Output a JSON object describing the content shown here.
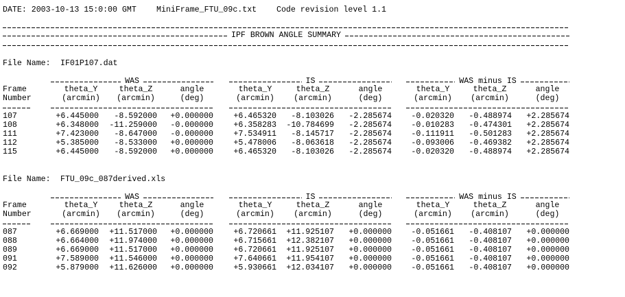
{
  "header": {
    "date": "DATE: 2003-10-13 15:0:00 GMT",
    "file": "MiniFrame_FTU_09c.txt",
    "revision": "Code revision level 1.1"
  },
  "title": "IPF BROWN ANGLE SUMMARY",
  "sections": [
    {
      "file_label": "File Name:",
      "file_name": "IF01P107.dat",
      "groups": [
        "WAS",
        "IS",
        "WAS minus IS"
      ],
      "frame_header": [
        "Frame",
        "Number"
      ],
      "columns": [
        [
          "theta_Y",
          "(arcmin)"
        ],
        [
          "theta_Z",
          "(arcmin)"
        ],
        [
          "angle",
          "(deg)"
        ],
        [
          "theta_Y",
          "(arcmin)"
        ],
        [
          "theta_Z",
          "(arcmin)"
        ],
        [
          "angle",
          "(deg)"
        ],
        [
          "theta_Y",
          "(arcmin)"
        ],
        [
          "theta_Z",
          "(arcmin)"
        ],
        [
          "angle",
          "(deg)"
        ]
      ],
      "rows": [
        [
          "107",
          "+6.445000",
          "-8.592000",
          "+0.000000",
          "+6.465320",
          "-8.103026",
          "-2.285674",
          "-0.020320",
          "-0.488974",
          "+2.285674"
        ],
        [
          "108",
          "+6.348000",
          "-11.259000",
          "-0.000000",
          "+6.358283",
          "-10.784699",
          "-2.285674",
          "-0.010283",
          "-0.474301",
          "+2.285674"
        ],
        [
          "111",
          "+7.423000",
          "-8.647000",
          "-0.000000",
          "+7.534911",
          "-8.145717",
          "-2.285674",
          "-0.111911",
          "-0.501283",
          "+2.285674"
        ],
        [
          "112",
          "+5.385000",
          "-8.533000",
          "+0.000000",
          "+5.478006",
          "-8.063618",
          "-2.285674",
          "-0.093006",
          "-0.469382",
          "+2.285674"
        ],
        [
          "115",
          "+6.445000",
          "-8.592000",
          "+0.000000",
          "+6.465320",
          "-8.103026",
          "-2.285674",
          "-0.020320",
          "-0.488974",
          "+2.285674"
        ]
      ]
    },
    {
      "file_label": "File Name:",
      "file_name": "FTU_09c_087derived.xls",
      "groups": [
        "WAS",
        "IS",
        "WAS minus IS"
      ],
      "frame_header": [
        "Frame",
        "Number"
      ],
      "columns": [
        [
          "theta_Y",
          "(arcmin)"
        ],
        [
          "theta_Z",
          "(arcmin)"
        ],
        [
          "angle",
          "(deg)"
        ],
        [
          "theta_Y",
          "(arcmin)"
        ],
        [
          "theta_Z",
          "(arcmin)"
        ],
        [
          "angle",
          "(deg)"
        ],
        [
          "theta_Y",
          "(arcmin)"
        ],
        [
          "theta_Z",
          "(arcmin)"
        ],
        [
          "angle",
          "(deg)"
        ]
      ],
      "rows": [
        [
          "087",
          "+6.669000",
          "+11.517000",
          "+0.000000",
          "+6.720661",
          "+11.925107",
          "+0.000000",
          "-0.051661",
          "-0.408107",
          "+0.000000"
        ],
        [
          "088",
          "+6.664000",
          "+11.974000",
          "+0.000000",
          "+6.715661",
          "+12.382107",
          "+0.000000",
          "-0.051661",
          "-0.408107",
          "+0.000000"
        ],
        [
          "089",
          "+6.669000",
          "+11.517000",
          "+0.000000",
          "+6.720661",
          "+11.925107",
          "+0.000000",
          "-0.051661",
          "-0.408107",
          "+0.000000"
        ],
        [
          "091",
          "+7.589000",
          "+11.546000",
          "+0.000000",
          "+7.640661",
          "+11.954107",
          "+0.000000",
          "-0.051661",
          "-0.408107",
          "+0.000000"
        ],
        [
          "092",
          "+5.879000",
          "+11.626000",
          "+0.000000",
          "+5.930661",
          "+12.034107",
          "+0.000000",
          "-0.051661",
          "-0.408107",
          "+0.000000"
        ]
      ]
    }
  ]
}
